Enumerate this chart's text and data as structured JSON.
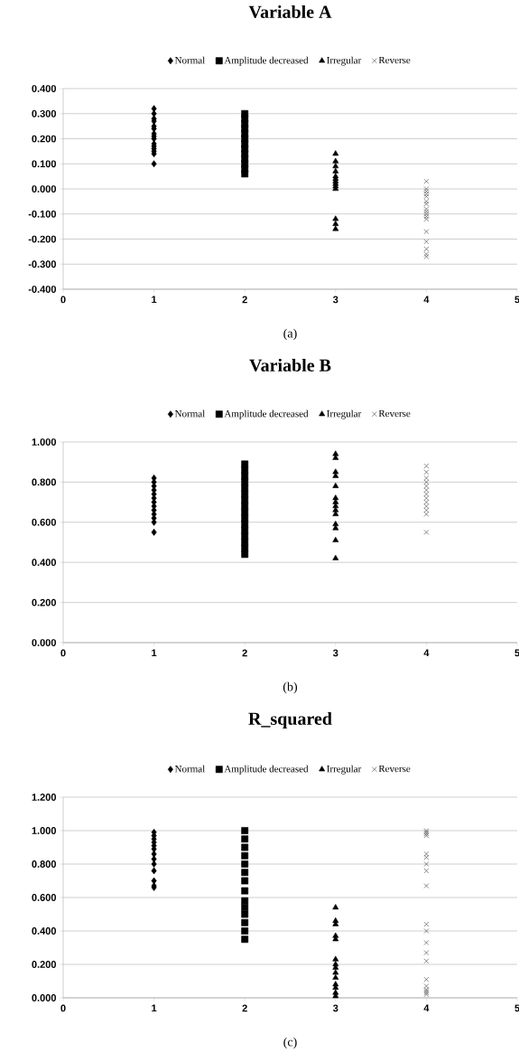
{
  "chart_data": [
    {
      "type": "scatter",
      "title": "Variable A",
      "annotations": [
        "(a)"
      ],
      "legend": "top",
      "grid": "y",
      "xlim": [
        0,
        5
      ],
      "xticks": [
        0,
        1,
        2,
        3,
        4,
        5
      ],
      "ylim": [
        -0.4,
        0.4
      ],
      "yticks": [
        {
          "value": -0.4,
          "label": "-0.400"
        },
        {
          "value": -0.3,
          "label": "-0.300"
        },
        {
          "value": -0.2,
          "label": "-0.200"
        },
        {
          "value": -0.1,
          "label": "-0.100"
        },
        {
          "value": 0,
          "label": "0.000"
        },
        {
          "value": 0.1,
          "label": "0.100"
        },
        {
          "value": 0.2,
          "label": "0.200"
        },
        {
          "value": 0.3,
          "label": "0.300"
        },
        {
          "value": 0.4,
          "label": "0.400"
        }
      ],
      "series": [
        {
          "name": "Normal",
          "color": "#000000",
          "marker": "diamond",
          "x": [
            1,
            1,
            1,
            1,
            1,
            1,
            1,
            1,
            1,
            1,
            1,
            1,
            1,
            1,
            1
          ],
          "values": [
            0.32,
            0.3,
            0.28,
            0.27,
            0.25,
            0.24,
            0.22,
            0.21,
            0.2,
            0.18,
            0.17,
            0.16,
            0.15,
            0.14,
            0.1
          ]
        },
        {
          "name": "Amplitude decreased",
          "color": "#000000",
          "marker": "square",
          "x": [
            2,
            2,
            2,
            2,
            2,
            2,
            2,
            2,
            2,
            2,
            2,
            2,
            2
          ],
          "values": [
            0.3,
            0.28,
            0.26,
            0.24,
            0.22,
            0.2,
            0.18,
            0.16,
            0.14,
            0.12,
            0.1,
            0.08,
            0.06
          ]
        },
        {
          "name": "Irregular",
          "color": "#000000",
          "marker": "triangle",
          "x": [
            3,
            3,
            3,
            3,
            3,
            3,
            3,
            3,
            3,
            3,
            3,
            3,
            3
          ],
          "values": [
            0.14,
            0.11,
            0.09,
            0.07,
            0.05,
            0.04,
            0.03,
            0.02,
            0.01,
            0.0,
            -0.12,
            -0.14,
            -0.16
          ]
        },
        {
          "name": "Reverse",
          "color": "#404040",
          "marker": "cross",
          "x": [
            4,
            4,
            4,
            4,
            4,
            4,
            4,
            4,
            4,
            4,
            4,
            4,
            4,
            4,
            4,
            4,
            4
          ],
          "values": [
            0.03,
            0.0,
            -0.01,
            -0.02,
            -0.03,
            -0.05,
            -0.06,
            -0.08,
            -0.09,
            -0.1,
            -0.11,
            -0.12,
            -0.17,
            -0.21,
            -0.24,
            -0.26,
            -0.27
          ]
        }
      ]
    },
    {
      "type": "scatter",
      "title": "Variable B",
      "annotations": [
        "(b)"
      ],
      "legend": "top",
      "grid": "y",
      "xlim": [
        0,
        5
      ],
      "xticks": [
        0,
        1,
        2,
        3,
        4,
        5
      ],
      "ylim": [
        0,
        1
      ],
      "yticks": [
        {
          "value": 0,
          "label": "0.000"
        },
        {
          "value": 0.2,
          "label": "0.200"
        },
        {
          "value": 0.4,
          "label": "0.400"
        },
        {
          "value": 0.6,
          "label": "0.600"
        },
        {
          "value": 0.8,
          "label": "0.800"
        },
        {
          "value": 1,
          "label": "1.000"
        }
      ],
      "series": [
        {
          "name": "Normal",
          "color": "#000000",
          "marker": "diamond",
          "x": [
            1,
            1,
            1,
            1,
            1,
            1,
            1,
            1,
            1,
            1,
            1,
            1,
            1
          ],
          "values": [
            0.82,
            0.8,
            0.78,
            0.76,
            0.74,
            0.72,
            0.7,
            0.68,
            0.66,
            0.64,
            0.62,
            0.6,
            0.55
          ]
        },
        {
          "name": "Amplitude decreased",
          "color": "#000000",
          "marker": "square",
          "x": [
            2,
            2,
            2,
            2,
            2,
            2,
            2,
            2,
            2,
            2,
            2,
            2,
            2,
            2,
            2,
            2
          ],
          "values": [
            0.89,
            0.86,
            0.83,
            0.8,
            0.77,
            0.74,
            0.71,
            0.68,
            0.65,
            0.62,
            0.59,
            0.56,
            0.53,
            0.5,
            0.47,
            0.44
          ]
        },
        {
          "name": "Irregular",
          "color": "#000000",
          "marker": "triangle",
          "x": [
            3,
            3,
            3,
            3,
            3,
            3,
            3,
            3,
            3,
            3,
            3,
            3,
            3,
            3
          ],
          "values": [
            0.94,
            0.92,
            0.85,
            0.83,
            0.78,
            0.72,
            0.7,
            0.68,
            0.66,
            0.64,
            0.59,
            0.57,
            0.51,
            0.42
          ]
        },
        {
          "name": "Reverse",
          "color": "#404040",
          "marker": "cross",
          "x": [
            4,
            4,
            4,
            4,
            4,
            4,
            4,
            4,
            4,
            4,
            4,
            4,
            4
          ],
          "values": [
            0.88,
            0.85,
            0.82,
            0.8,
            0.78,
            0.76,
            0.74,
            0.72,
            0.7,
            0.68,
            0.66,
            0.64,
            0.55
          ]
        }
      ]
    },
    {
      "type": "scatter",
      "title": "R_squared",
      "annotations": [
        "(c)"
      ],
      "legend": "top",
      "grid": "y",
      "xlim": [
        0,
        5
      ],
      "xticks": [
        0,
        1,
        2,
        3,
        4,
        5
      ],
      "ylim": [
        0,
        1.2
      ],
      "yticks": [
        {
          "value": 0,
          "label": "0.000"
        },
        {
          "value": 0.2,
          "label": "0.200"
        },
        {
          "value": 0.4,
          "label": "0.400"
        },
        {
          "value": 0.6,
          "label": "0.600"
        },
        {
          "value": 0.8,
          "label": "0.800"
        },
        {
          "value": 1,
          "label": "1.000"
        },
        {
          "value": 1.2,
          "label": "1.200"
        }
      ],
      "series": [
        {
          "name": "Normal",
          "color": "#000000",
          "marker": "diamond",
          "x": [
            1,
            1,
            1,
            1,
            1,
            1,
            1,
            1,
            1,
            1,
            1,
            1,
            1
          ],
          "values": [
            0.99,
            0.97,
            0.95,
            0.93,
            0.91,
            0.89,
            0.86,
            0.83,
            0.8,
            0.76,
            0.7,
            0.67,
            0.66
          ]
        },
        {
          "name": "Amplitude decreased",
          "color": "#000000",
          "marker": "square",
          "x": [
            2,
            2,
            2,
            2,
            2,
            2,
            2,
            2,
            2,
            2,
            2,
            2,
            2,
            2
          ],
          "values": [
            1.0,
            0.95,
            0.9,
            0.85,
            0.8,
            0.75,
            0.7,
            0.64,
            0.58,
            0.54,
            0.5,
            0.45,
            0.4,
            0.35
          ]
        },
        {
          "name": "Irregular",
          "color": "#000000",
          "marker": "triangle",
          "x": [
            3,
            3,
            3,
            3,
            3,
            3,
            3,
            3,
            3,
            3,
            3,
            3,
            3,
            3
          ],
          "values": [
            0.54,
            0.46,
            0.44,
            0.37,
            0.35,
            0.23,
            0.2,
            0.18,
            0.15,
            0.12,
            0.08,
            0.06,
            0.03,
            0.01
          ]
        },
        {
          "name": "Reverse",
          "color": "#404040",
          "marker": "cross",
          "x": [
            4,
            4,
            4,
            4,
            4,
            4,
            4,
            4,
            4,
            4,
            4,
            4,
            4,
            4,
            4,
            4,
            4,
            4,
            4,
            4
          ],
          "values": [
            1.0,
            0.99,
            0.98,
            0.97,
            0.86,
            0.84,
            0.8,
            0.76,
            0.67,
            0.44,
            0.4,
            0.33,
            0.27,
            0.22,
            0.11,
            0.07,
            0.05,
            0.04,
            0.03,
            0.02
          ]
        }
      ]
    }
  ]
}
